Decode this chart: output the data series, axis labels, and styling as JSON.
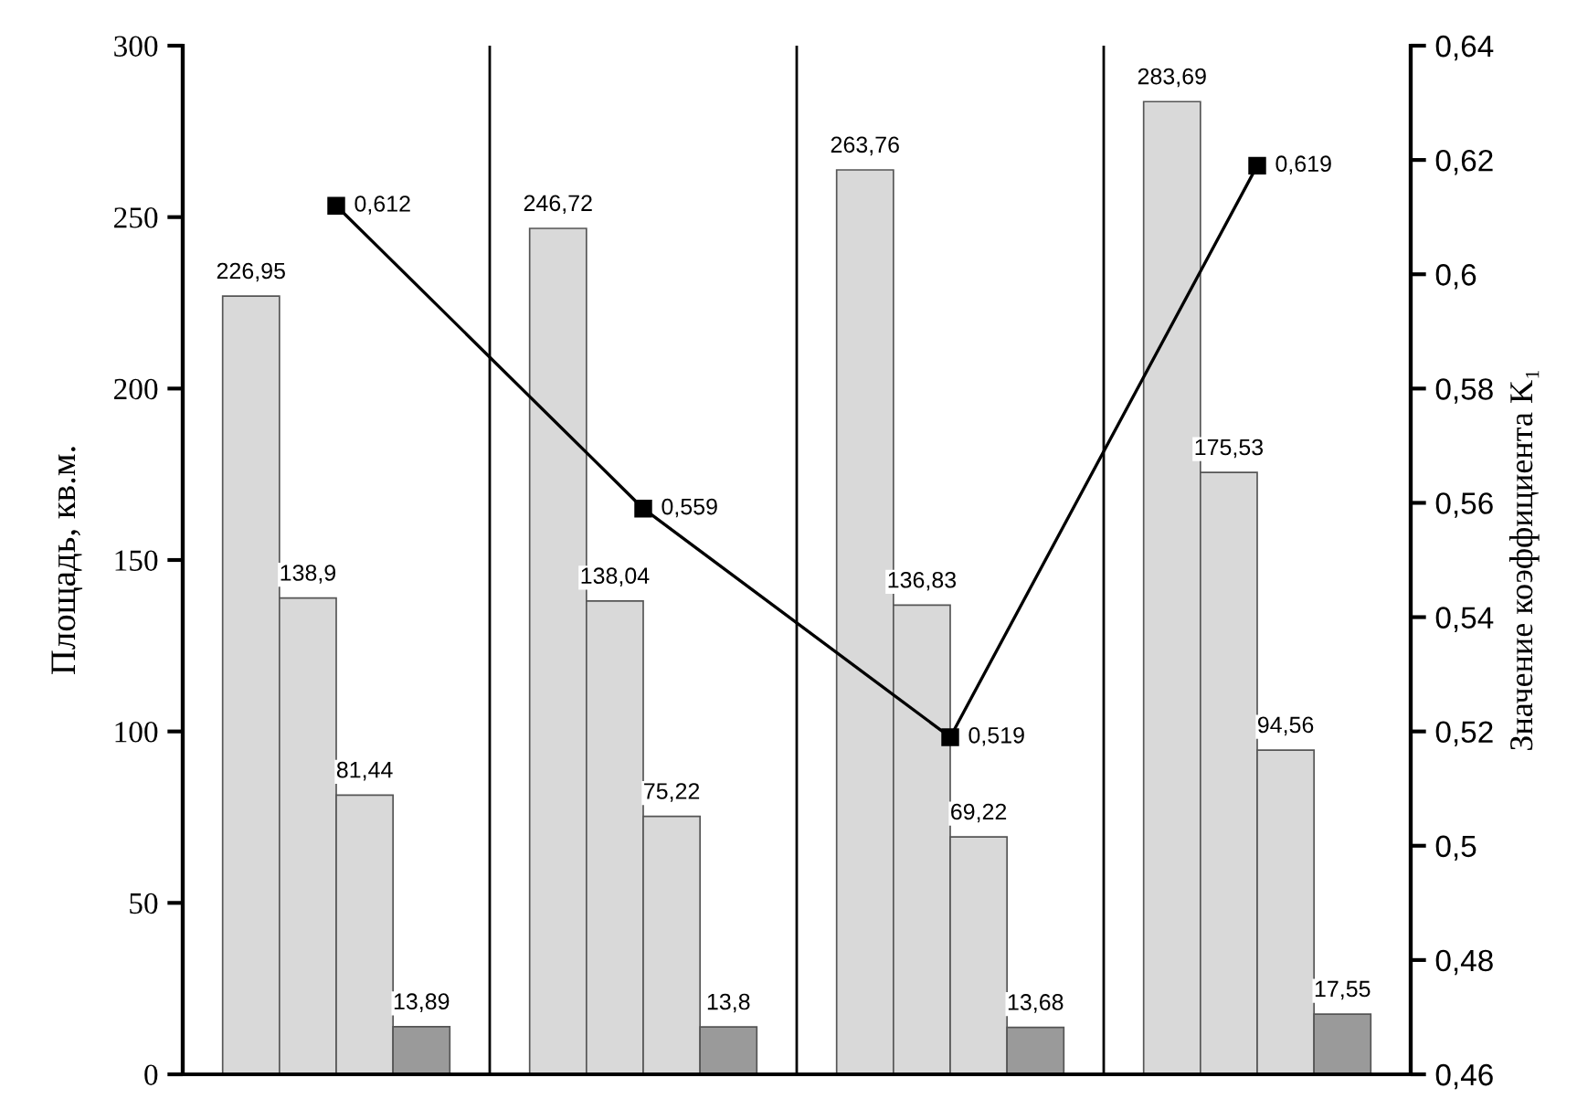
{
  "chart_data": {
    "type": "bar",
    "ylabel": "Площадь, кв.м.",
    "y2label": "Значение коэффициента K₁",
    "categories": [
      null,
      null,
      null,
      null
    ],
    "series": [
      {
        "color": "#d9d9d9",
        "values": [
          226.95,
          246.72,
          263.76,
          283.69
        ],
        "value_labels": [
          "226,95",
          "246,72",
          "263,76",
          "283,69"
        ]
      },
      {
        "color": "#d9d9d9",
        "values": [
          138.9,
          138.04,
          136.83,
          175.53
        ],
        "value_labels": [
          "138,9",
          "138,04",
          "136,83",
          "175,53"
        ]
      },
      {
        "color": "#d9d9d9",
        "values": [
          81.44,
          75.22,
          69.22,
          94.56
        ],
        "value_labels": [
          "81,44",
          "75,22",
          "69,22",
          "94,56"
        ]
      },
      {
        "color": "#9a9a9a",
        "values": [
          13.89,
          13.8,
          13.68,
          17.55
        ],
        "value_labels": [
          "13,89",
          "13,8",
          "13,68",
          "17,55"
        ]
      },
      {
        "type": "line",
        "axis": "y2",
        "color": "#000000",
        "marker": "square",
        "values": [
          0.612,
          0.559,
          0.519,
          0.619
        ],
        "value_labels": [
          "0,612",
          "0,559",
          "0,519",
          "0,619"
        ]
      }
    ],
    "ylim": [
      0,
      300
    ],
    "yticks": [
      0,
      50,
      100,
      150,
      200,
      250,
      300
    ],
    "y2lim": [
      0.46,
      0.64
    ],
    "y2ticks": [
      {
        "value": 0.46,
        "label": "0,46"
      },
      {
        "value": 0.48,
        "label": "0,48"
      },
      {
        "value": 0.5,
        "label": "0,5"
      },
      {
        "value": 0.52,
        "label": "0,52"
      },
      {
        "value": 0.54,
        "label": "0,54"
      },
      {
        "value": 0.56,
        "label": "0,56"
      },
      {
        "value": 0.58,
        "label": "0,58"
      },
      {
        "value": 0.6,
        "label": "0,6"
      },
      {
        "value": 0.62,
        "label": "0,62"
      },
      {
        "value": 0.64,
        "label": "0,64"
      }
    ],
    "grid": "x"
  }
}
